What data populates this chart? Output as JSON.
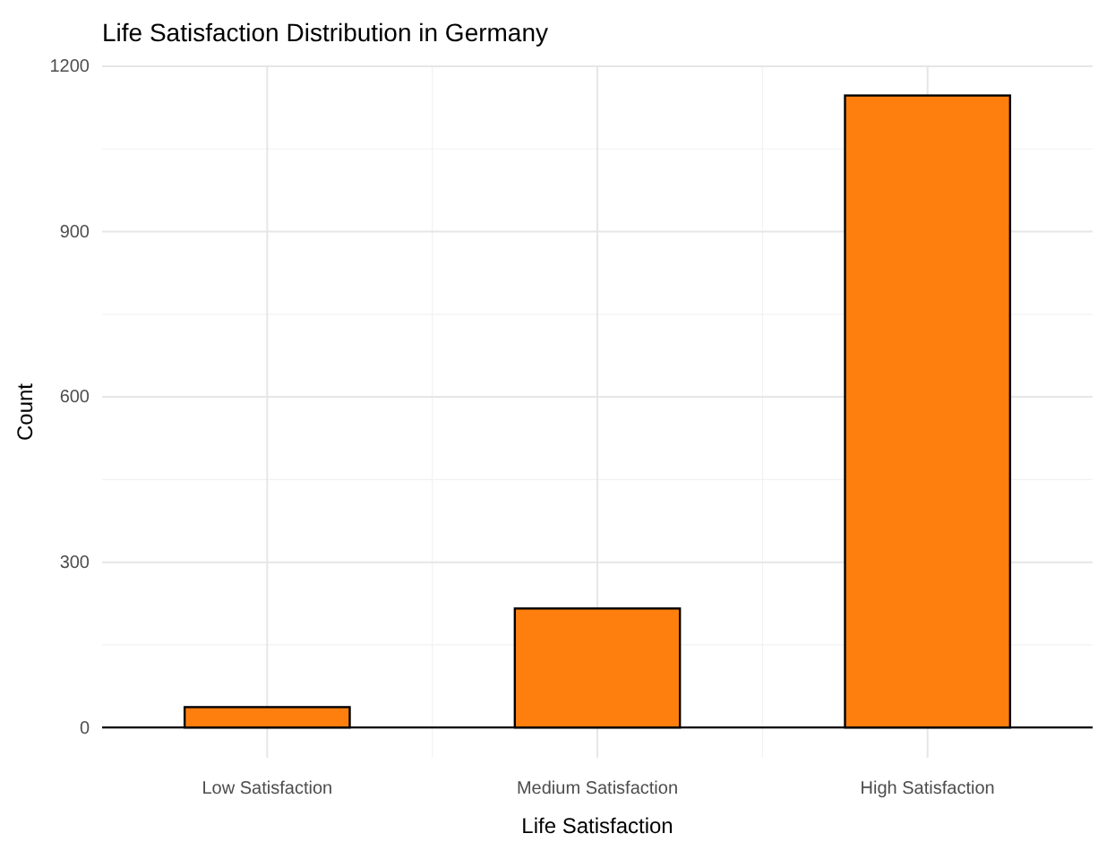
{
  "chart_data": {
    "type": "bar",
    "title": "Life Satisfaction Distribution in Germany",
    "xlabel": "Life Satisfaction",
    "ylabel": "Count",
    "categories": [
      "Low Satisfaction",
      "Medium Satisfaction",
      "High Satisfaction"
    ],
    "values": [
      37,
      216,
      1147
    ],
    "color": "#ff7f0e",
    "ylim": [
      -55,
      1200
    ],
    "yticks": [
      0,
      300,
      600,
      900,
      1200
    ],
    "grid": true,
    "ref_lines": [
      {
        "axis": "y",
        "value": 0,
        "color": "#000000"
      }
    ]
  }
}
